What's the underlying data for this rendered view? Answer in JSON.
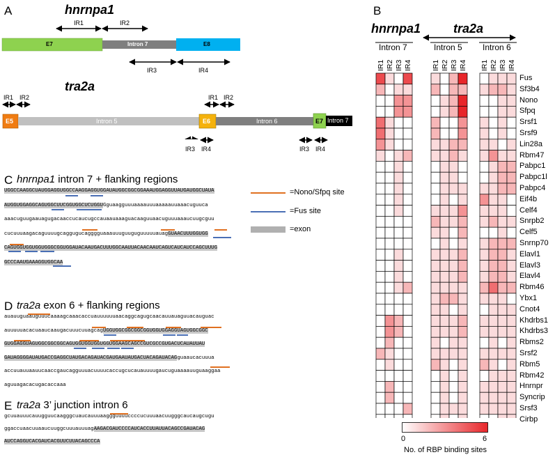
{
  "panels": {
    "a": "A",
    "b": "B",
    "c": "C",
    "d": "D",
    "e": "E"
  },
  "panel_a": {
    "gene1": "hnrnpa1",
    "gene1_labels": {
      "e7": "E7",
      "intron": "Intron 7",
      "e8": "E8",
      "ir1": "IR1",
      "ir2": "IR2",
      "ir3": "IR3",
      "ir4": "IR4"
    },
    "gene2": "tra2a",
    "gene2_labels": {
      "e5": "E5",
      "intron5": "Intron 5",
      "e6": "E6",
      "intron6": "Intron 6",
      "e7": "E7",
      "intron7": "Intron 7",
      "ir1_left": "IR1",
      "ir2_left": "IR2",
      "ir1_mid": "IR1",
      "ir2_mid": "IR2",
      "ir3_a": "IR3",
      "ir4_a": "IR4",
      "ir3_b": "IR3",
      "ir4_b": "IR4"
    },
    "colors": {
      "e7": "#8ed24f",
      "e8": "#00b0f0",
      "intron": "#7f7f7f",
      "intron5": "#c0c0c0",
      "e5": "#f07c12",
      "e6": "#f5b20c",
      "e7b": "#8ed24f",
      "intron7b": "#000000"
    }
  },
  "panel_c": {
    "title_gene": "hnrnpa1",
    "title_rest": " intron 7 + flanking regions",
    "lines": [
      "UGGCCAAGGCUAUGGAGGUGGCCAAGGAGGUGGAUAUGGCGGCGGAAAUGGAGGUUAUGAUGGCUAUA",
      "AUGGUGGAGGCAGUGGCUUCGGUGGCUCUGGUGguaagguuuaaaauuuaaaaauuaaacuguuca",
      "aaacuguugaauagugacaaccucaucugccauaauaaaguacaaguuaacuguuuaaaucuugcguu",
      "cucuuuaagacaguuuugcaggugucagggguaaauuuguuguguuuuuauagGUAACUUUGGUGG",
      "CAGUGGUGGUGGUGGGCGGUGGAUACAAUGACUUUGGCAAUUACAACAAUCAGUCAUCAUCCAGCUUUG",
      "GCCCAAUGAAAGGUGGCAA"
    ],
    "exon_spans": [
      [
        0,
        68
      ],
      [
        0,
        32
      ],
      [],
      [
        53,
        66
      ],
      [
        0,
        69
      ],
      [
        0,
        19
      ]
    ]
  },
  "legend": {
    "nono": "=Nono/Sfpq site",
    "fus": "=Fus site",
    "exon": "=exon",
    "nono_color": "#e07020",
    "fus_color": "#4a6fb5"
  },
  "panel_d": {
    "title_gene": "tra2a",
    "title_rest": " exon 6 + flanking regions",
    "lines": [
      "auauuguaauguuucaaaagcaaacaccuauuuuuuaacaggcagugcaacauuauaguuacauguac",
      "auuuuuacacuaaucaaugacuuucuuagcagUGGUGGCGGCGGCGGUGGUGGAGGUAGUGGCGGC",
      "GUGGAGGUAGUGGCGGCGGCAGUGGUGGUGGUGGUGGAAGCAGCCGUCGCCGUGACUCAUAUUAU",
      "GAUAGGGGAUAUGACCGAGGCUAUGACAGAUACGAUGAAUAUGACUACAGAUACAGguaaucacuuua",
      "accuuauuaauucaaccgaucagguuuacuuuucaccugcucauauuuugaucuguaaaauuguaaggaa",
      "aguuagacacugacaccaaa"
    ],
    "exon_spans": [
      [],
      [
        32,
        66
      ],
      [
        0,
        66
      ],
      [
        0,
        56
      ],
      [],
      []
    ]
  },
  "panel_e": {
    "title_gene": "tra2a",
    "title_rest": " 3’ junction intron 6",
    "lines": [
      "gcuuauuucauugguucaagggcuaucauuuaaggguuuuccccucuuuaacuugggcaucaugcugu",
      "ggaccuaacuuaaucuuggcuuuauuuagAAGACGAUCCCCAUCACCUUAUUACAGCCGAUACAG",
      "AUCCAGGUCACGAUCACGUUCUUACAGCCCA"
    ],
    "exon_spans": [
      [],
      [
        29,
        65
      ],
      [
        0,
        31
      ]
    ]
  },
  "panel_b": {
    "gene1": "hnrnpa1",
    "gene2": "tra2a",
    "groups": [
      "Intron 7",
      "Intron 5",
      "Intron 6"
    ],
    "columns": [
      "IR1",
      "IR2",
      "IR3",
      "IR4"
    ],
    "colorbar_min": "0",
    "colorbar_max": "6",
    "colorbar_label": "No. of RBP binding sites",
    "color_low": "#ffffff",
    "color_high": "#e8262a"
  },
  "chart_data": {
    "type": "heatmap",
    "rows": [
      "Fus",
      "Sf3b4",
      "Nono",
      "Sfpq",
      "Srsf1",
      "Srsf9",
      "Lin28a",
      "Rbm47",
      "Pabpc1",
      "Pabpc1l",
      "Pabpc4",
      "Eif4b",
      "Celf4",
      "Snrpb2",
      "Celf5",
      "Snrnp70",
      "Elavl1",
      "Elavl3",
      "Elavl4",
      "Rbm46",
      "Ybx1",
      "Cnot4",
      "Khdrbs1",
      "Khdrbs3",
      "Rbms2",
      "Srsf2",
      "Rbm5",
      "Rbm42",
      "Hnrnpr",
      "Syncrip",
      "Srsf3",
      "Cirbp"
    ],
    "groups": [
      "Intron 7",
      "Intron 5",
      "Intron 6"
    ],
    "columns": [
      "IR1",
      "IR2",
      "IR3",
      "IR4"
    ],
    "vmin": 0,
    "vmax": 6,
    "values": [
      [
        [
          5,
          1,
          0,
          5
        ],
        [
          1,
          0,
          2,
          6
        ],
        [
          0,
          1,
          1,
          1
        ]
      ],
      [
        [
          2,
          0,
          1,
          1
        ],
        [
          2,
          0,
          2,
          2
        ],
        [
          1,
          2,
          2,
          1
        ]
      ],
      [
        [
          0,
          0,
          3,
          3
        ],
        [
          0,
          1,
          2,
          6
        ],
        [
          0,
          0,
          1,
          1
        ]
      ],
      [
        [
          0,
          0,
          3,
          3
        ],
        [
          0,
          1,
          2,
          6
        ],
        [
          0,
          0,
          1,
          1
        ]
      ],
      [
        [
          4,
          1,
          0,
          0
        ],
        [
          2,
          0,
          0,
          3
        ],
        [
          1,
          0,
          1,
          0
        ]
      ],
      [
        [
          4,
          1,
          0,
          0
        ],
        [
          2,
          0,
          0,
          3
        ],
        [
          1,
          0,
          1,
          0
        ]
      ],
      [
        [
          3,
          1,
          0,
          0
        ],
        [
          1,
          1,
          2,
          2
        ],
        [
          1,
          1,
          0,
          1
        ]
      ],
      [
        [
          1,
          0,
          1,
          2
        ],
        [
          1,
          1,
          2,
          1
        ],
        [
          1,
          3,
          1,
          1
        ]
      ],
      [
        [
          0,
          0,
          1,
          0
        ],
        [
          0,
          1,
          1,
          0
        ],
        [
          0,
          1,
          2,
          2
        ]
      ],
      [
        [
          0,
          0,
          1,
          0
        ],
        [
          0,
          1,
          1,
          0
        ],
        [
          0,
          1,
          2,
          2
        ]
      ],
      [
        [
          0,
          0,
          1,
          0
        ],
        [
          0,
          1,
          1,
          1
        ],
        [
          1,
          1,
          2,
          2
        ]
      ],
      [
        [
          0,
          0,
          1,
          0
        ],
        [
          0,
          1,
          0,
          1
        ],
        [
          3,
          1,
          1,
          0
        ]
      ],
      [
        [
          0,
          0,
          1,
          0
        ],
        [
          1,
          1,
          1,
          3
        ],
        [
          1,
          1,
          1,
          0
        ]
      ],
      [
        [
          0,
          0,
          0,
          0
        ],
        [
          2,
          1,
          1,
          2
        ],
        [
          1,
          2,
          1,
          1
        ]
      ],
      [
        [
          0,
          0,
          0,
          0
        ],
        [
          1,
          1,
          0,
          2
        ],
        [
          0,
          0,
          1,
          0
        ]
      ],
      [
        [
          0,
          0,
          0,
          0
        ],
        [
          0,
          1,
          0,
          1
        ],
        [
          1,
          2,
          2,
          2
        ]
      ],
      [
        [
          0,
          0,
          1,
          0
        ],
        [
          1,
          1,
          1,
          2
        ],
        [
          1,
          2,
          2,
          1
        ]
      ],
      [
        [
          0,
          0,
          1,
          0
        ],
        [
          1,
          1,
          1,
          2
        ],
        [
          1,
          2,
          2,
          1
        ]
      ],
      [
        [
          0,
          0,
          1,
          0
        ],
        [
          1,
          1,
          1,
          2
        ],
        [
          1,
          2,
          2,
          1
        ]
      ],
      [
        [
          0,
          0,
          1,
          2
        ],
        [
          1,
          1,
          1,
          1
        ],
        [
          2,
          4,
          2,
          2
        ]
      ],
      [
        [
          0,
          0,
          0,
          0
        ],
        [
          1,
          2,
          2,
          1
        ],
        [
          1,
          1,
          1,
          0
        ]
      ],
      [
        [
          0,
          0,
          0,
          0
        ],
        [
          1,
          1,
          0,
          1
        ],
        [
          0,
          1,
          1,
          1
        ]
      ],
      [
        [
          0,
          3,
          2,
          0
        ],
        [
          1,
          1,
          1,
          2
        ],
        [
          1,
          1,
          1,
          1
        ]
      ],
      [
        [
          0,
          3,
          2,
          0
        ],
        [
          1,
          1,
          1,
          2
        ],
        [
          1,
          1,
          1,
          1
        ]
      ],
      [
        [
          0,
          2,
          0,
          0
        ],
        [
          1,
          0,
          1,
          1
        ],
        [
          0,
          1,
          0,
          1
        ]
      ],
      [
        [
          2,
          1,
          0,
          0
        ],
        [
          1,
          1,
          1,
          1
        ],
        [
          1,
          1,
          1,
          1
        ]
      ],
      [
        [
          0,
          1,
          0,
          0
        ],
        [
          2,
          1,
          0,
          1
        ],
        [
          2,
          1,
          0,
          1
        ]
      ],
      [
        [
          0,
          0,
          0,
          0
        ],
        [
          0,
          1,
          0,
          1
        ],
        [
          0,
          1,
          1,
          1
        ]
      ],
      [
        [
          0,
          2,
          0,
          0
        ],
        [
          0,
          1,
          0,
          1
        ],
        [
          1,
          1,
          1,
          1
        ]
      ],
      [
        [
          0,
          2,
          0,
          0
        ],
        [
          0,
          1,
          0,
          1
        ],
        [
          1,
          1,
          1,
          1
        ]
      ],
      [
        [
          0,
          0,
          0,
          2
        ],
        [
          0,
          1,
          1,
          1
        ],
        [
          1,
          1,
          1,
          1
        ]
      ],
      [
        [
          0,
          0,
          0,
          0
        ],
        [
          0,
          1,
          0,
          1
        ],
        [
          0,
          0,
          1,
          1
        ]
      ]
    ]
  }
}
